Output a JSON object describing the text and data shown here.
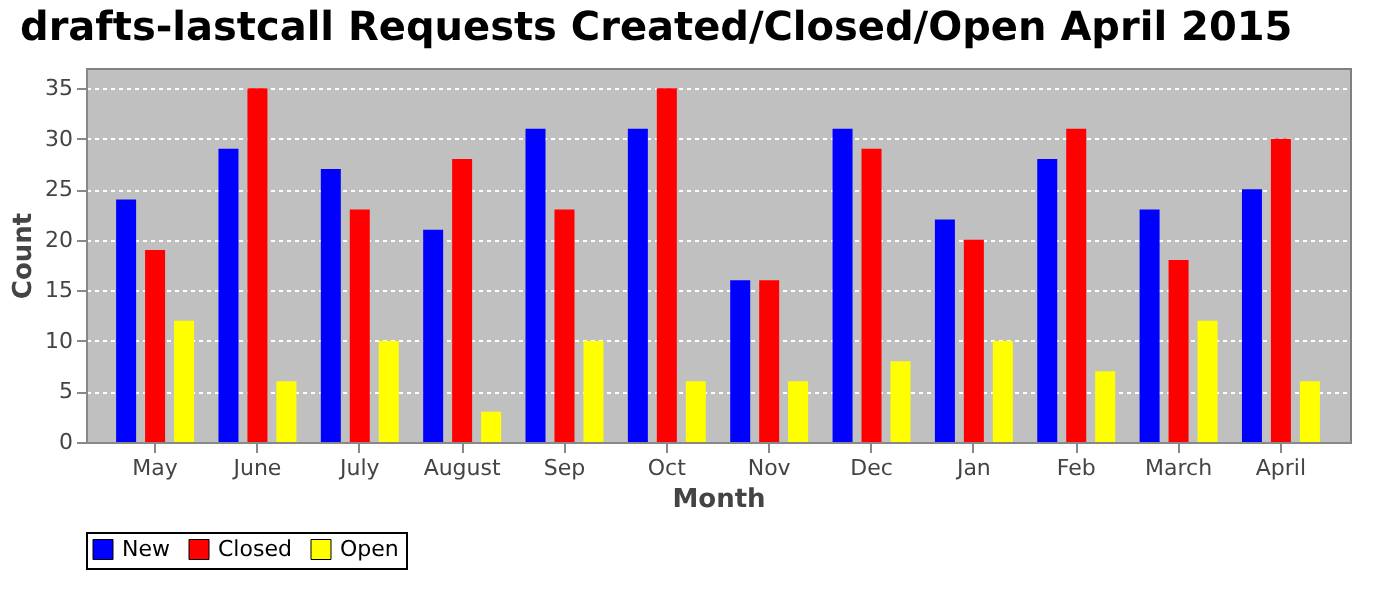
{
  "chart_data": {
    "type": "bar",
    "title": "drafts-lastcall Requests Created/Closed/Open April 2015",
    "xlabel": "Month",
    "ylabel": "Count",
    "categories": [
      "May",
      "June",
      "July",
      "August",
      "Sep",
      "Oct",
      "Nov",
      "Dec",
      "Jan",
      "Feb",
      "March",
      "April"
    ],
    "series": [
      {
        "name": "New",
        "color": "#0000ff",
        "values": [
          24,
          29,
          27,
          21,
          31,
          31,
          16,
          31,
          22,
          28,
          23,
          25
        ]
      },
      {
        "name": "Closed",
        "color": "#ff0000",
        "values": [
          19,
          35,
          23,
          28,
          23,
          35,
          16,
          29,
          20,
          31,
          18,
          30
        ]
      },
      {
        "name": "Open",
        "color": "#ffff00",
        "values": [
          12,
          6,
          10,
          3,
          10,
          6,
          6,
          8,
          10,
          7,
          12,
          6
        ]
      }
    ],
    "ylim": [
      0,
      37
    ],
    "yticks": [
      0,
      5,
      10,
      15,
      20,
      25,
      30,
      35
    ],
    "grid": "y",
    "legend": "bottom"
  }
}
